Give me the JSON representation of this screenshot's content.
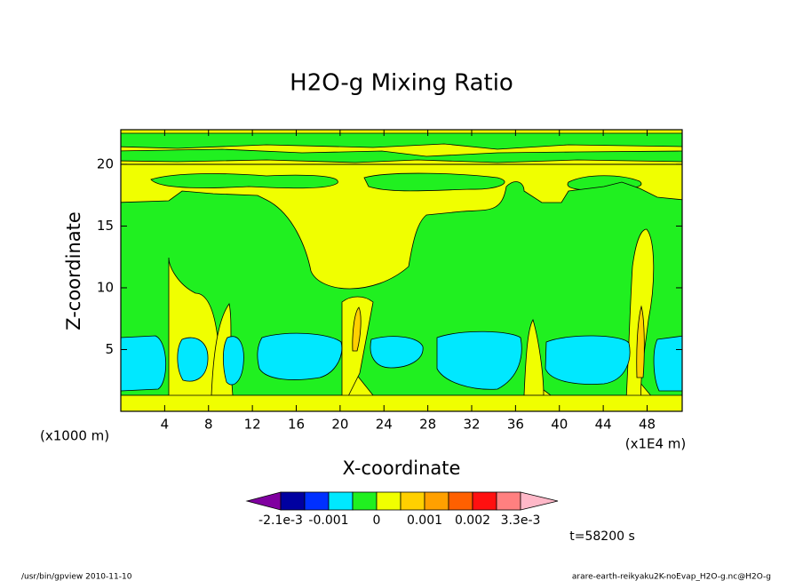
{
  "chart_data": {
    "type": "contour",
    "title": "H2O-g Mixing Ratio",
    "xlabel": "X-coordinate",
    "ylabel": "Z-coordinate",
    "x_unit": "(x1E4 m)",
    "y_unit": "(x1000 m)",
    "xlim": [
      0,
      51.2
    ],
    "ylim": [
      0,
      22.8
    ],
    "xticks": [
      4,
      8,
      12,
      16,
      20,
      24,
      28,
      32,
      36,
      40,
      44,
      48
    ],
    "yticks": [
      5,
      10,
      15,
      20
    ],
    "colorbar": {
      "colors": [
        "#8000a0",
        "#0000a0",
        "#0030ff",
        "#00e8ff",
        "#20f020",
        "#f0ff00",
        "#ffd000",
        "#ffa000",
        "#ff6000",
        "#ff1010",
        "#ff8080",
        "#ffb8c8"
      ],
      "ticks": [
        {
          "value": -0.0021,
          "label": "-2.1e-3"
        },
        {
          "value": -0.001,
          "label": "-0.001"
        },
        0,
        0.001,
        0.002,
        {
          "value": 0.0033,
          "label": "3.3e-3"
        }
      ]
    },
    "annotation": "t=58200 s",
    "footer_left": "/usr/bin/gpview  2010-11-10",
    "footer_right": "arare-earth-reikyaku2K-noEvap_H2O-g.nc@H2O-g"
  }
}
